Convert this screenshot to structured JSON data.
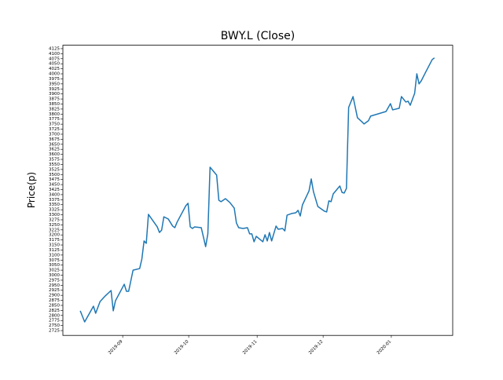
{
  "chart_data": {
    "type": "line",
    "title": "BWY.L (Close)",
    "y_label": "Price(p)",
    "x": [
      0,
      2,
      4,
      6,
      7,
      9,
      11,
      14,
      15,
      16,
      20,
      21,
      22,
      24,
      27,
      28,
      29,
      30,
      31,
      35,
      36,
      37,
      38,
      40,
      42,
      43,
      44,
      48,
      49,
      50,
      51,
      52,
      55,
      57,
      58,
      59,
      62,
      63,
      64,
      66,
      68,
      70,
      71,
      72,
      74,
      76,
      77,
      78,
      79,
      80,
      83,
      84,
      85,
      86,
      87,
      89,
      90,
      92,
      93,
      94,
      96,
      98,
      99,
      100,
      101,
      104,
      105,
      106,
      108,
      111,
      112,
      113,
      114,
      115,
      118,
      119,
      120,
      121,
      122,
      124,
      126,
      128,
      129,
      131,
      132,
      139,
      141,
      142,
      145,
      146,
      148,
      149,
      150,
      152,
      153,
      154,
      155,
      157,
      160,
      161
    ],
    "series": [
      {
        "name": "Close",
        "color": "#1f77b4",
        "values": [
          2823,
          2768,
          2807,
          2846,
          2811,
          2869,
          2893,
          2924,
          2823,
          2873,
          2955,
          2920,
          2920,
          3025,
          3033,
          3080,
          3170,
          3158,
          3302,
          3240,
          3212,
          3224,
          3290,
          3279,
          3244,
          3236,
          3263,
          3345,
          3357,
          3240,
          3232,
          3240,
          3236,
          3142,
          3205,
          3536,
          3497,
          3372,
          3365,
          3380,
          3361,
          3333,
          3259,
          3236,
          3232,
          3236,
          3205,
          3205,
          3166,
          3193,
          3166,
          3201,
          3170,
          3212,
          3170,
          3244,
          3228,
          3232,
          3220,
          3298,
          3306,
          3310,
          3322,
          3294,
          3349,
          3419,
          3478,
          3415,
          3341,
          3318,
          3314,
          3369,
          3365,
          3404,
          3443,
          3411,
          3408,
          3431,
          3833,
          3887,
          3782,
          3762,
          3751,
          3767,
          3790,
          3813,
          3852,
          3821,
          3829,
          3887,
          3860,
          3864,
          3844,
          3903,
          4000,
          3950,
          3965,
          4008,
          4071,
          4079
        ]
      }
    ],
    "xlim": [
      -7.9,
      169.3
    ],
    "xticks": [
      {
        "value": 19.3,
        "label": "2019-09"
      },
      {
        "value": 49.3,
        "label": "2019-10"
      },
      {
        "value": 80.4,
        "label": "2019-11"
      },
      {
        "value": 110.4,
        "label": "2019-12"
      },
      {
        "value": 141.4,
        "label": "2020-01"
      }
    ],
    "ylim": [
      2701,
      4142
    ],
    "yticks": [
      2725,
      2750,
      2775,
      2800,
      2825,
      2850,
      2875,
      2900,
      2925,
      2950,
      2975,
      3000,
      3025,
      3050,
      3075,
      3100,
      3125,
      3150,
      3175,
      3200,
      3225,
      3250,
      3275,
      3300,
      3325,
      3350,
      3375,
      3400,
      3425,
      3450,
      3475,
      3500,
      3525,
      3550,
      3575,
      3600,
      3625,
      3650,
      3675,
      3700,
      3725,
      3750,
      3775,
      3800,
      3825,
      3850,
      3875,
      3900,
      3925,
      3950,
      3975,
      4000,
      4025,
      4050,
      4075,
      4100,
      4125
    ]
  }
}
